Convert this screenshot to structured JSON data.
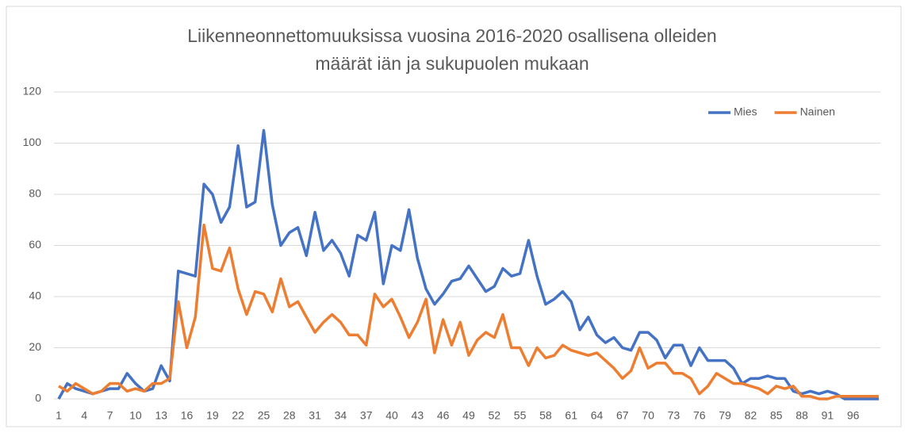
{
  "chart_data": {
    "type": "line",
    "title": [
      "Liikenneonnettomuuksissa vuosina 2016-2020 osallisena olleiden",
      "määrät iän ja sukupuolen mukaan"
    ],
    "categories": [
      1,
      null,
      null,
      4,
      null,
      null,
      7,
      null,
      null,
      10,
      null,
      null,
      13,
      null,
      null,
      16,
      null,
      null,
      19,
      null,
      null,
      22,
      null,
      null,
      25,
      null,
      null,
      28,
      null,
      null,
      31,
      null,
      null,
      34,
      null,
      null,
      37,
      null,
      null,
      40,
      null,
      null,
      43,
      null,
      null,
      46,
      null,
      null,
      49,
      null,
      null,
      52,
      null,
      null,
      55,
      null,
      null,
      58,
      null,
      null,
      61,
      null,
      null,
      64,
      null,
      null,
      67,
      null,
      null,
      70,
      null,
      null,
      73,
      null,
      null,
      76,
      null,
      null,
      79,
      null,
      null,
      82,
      null,
      null,
      85,
      null,
      null,
      88,
      null,
      null,
      91,
      null,
      null,
      96,
      null,
      null,
      null
    ],
    "series": [
      {
        "name": "Mies",
        "color": "#4472c4",
        "values": [
          0,
          6,
          4,
          3,
          2,
          3,
          4,
          4,
          10,
          6,
          3,
          4,
          13,
          7,
          50,
          49,
          48,
          84,
          80,
          69,
          75,
          99,
          75,
          77,
          105,
          76,
          60,
          65,
          67,
          56,
          73,
          58,
          62,
          57,
          48,
          64,
          62,
          73,
          45,
          60,
          58,
          74,
          55,
          43,
          37,
          41,
          46,
          47,
          52,
          47,
          42,
          44,
          51,
          48,
          49,
          62,
          48,
          37,
          39,
          42,
          38,
          27,
          32,
          25,
          22,
          24,
          20,
          19,
          26,
          26,
          23,
          16,
          21,
          21,
          13,
          20,
          15,
          15,
          15,
          12,
          6,
          8,
          8,
          9,
          8,
          8,
          3,
          2,
          3,
          2,
          3,
          2,
          0,
          0,
          0,
          0,
          0
        ]
      },
      {
        "name": "Nainen",
        "color": "#ed7d31",
        "values": [
          5,
          3,
          6,
          4,
          2,
          3,
          6,
          6,
          3,
          4,
          3,
          6,
          6,
          8,
          38,
          20,
          32,
          68,
          51,
          50,
          59,
          43,
          33,
          42,
          41,
          34,
          47,
          36,
          38,
          32,
          26,
          30,
          33,
          30,
          25,
          25,
          21,
          41,
          36,
          39,
          32,
          24,
          30,
          39,
          18,
          31,
          21,
          30,
          17,
          23,
          26,
          24,
          33,
          20,
          20,
          13,
          20,
          16,
          17,
          21,
          19,
          18,
          17,
          18,
          15,
          12,
          8,
          11,
          20,
          12,
          14,
          14,
          10,
          10,
          8,
          2,
          5,
          10,
          8,
          6,
          6,
          5,
          4,
          2,
          5,
          4,
          5,
          1,
          1,
          0,
          0,
          1,
          1,
          1,
          1,
          1,
          1
        ]
      }
    ],
    "ylim": [
      0,
      120
    ],
    "yticks": [
      0,
      20,
      40,
      60,
      80,
      100,
      120
    ],
    "grid": true,
    "legend": "top-right"
  }
}
